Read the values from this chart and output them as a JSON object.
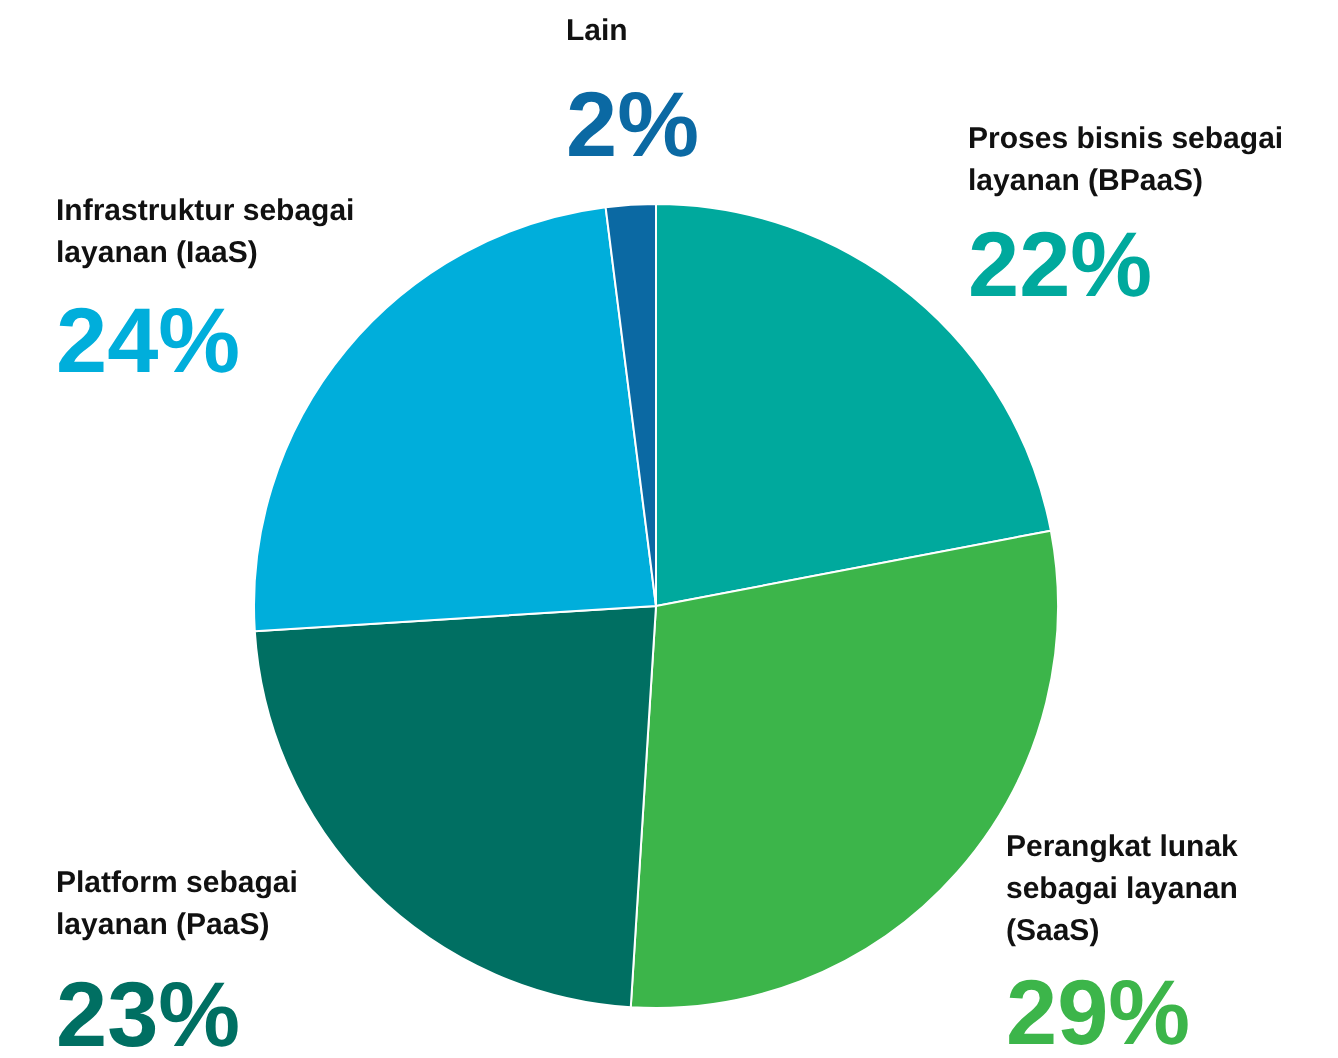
{
  "chart_data": {
    "type": "pie",
    "categories": [
      "Proses bisnis sebagai layanan (BPaaS)",
      "Perangkat lunak sebagai layanan (SaaS)",
      "Platform sebagai layanan (PaaS)",
      "Infrastruktur sebagai layanan (IaaS)",
      "Lain"
    ],
    "values": [
      22,
      29,
      23,
      24,
      2
    ],
    "colors": [
      "#00a99d",
      "#3cb54a",
      "#006f62",
      "#00aedb",
      "#0b69a3"
    ],
    "value_labels": [
      "22%",
      "29%",
      "23%",
      "24%",
      "2%"
    ]
  }
}
